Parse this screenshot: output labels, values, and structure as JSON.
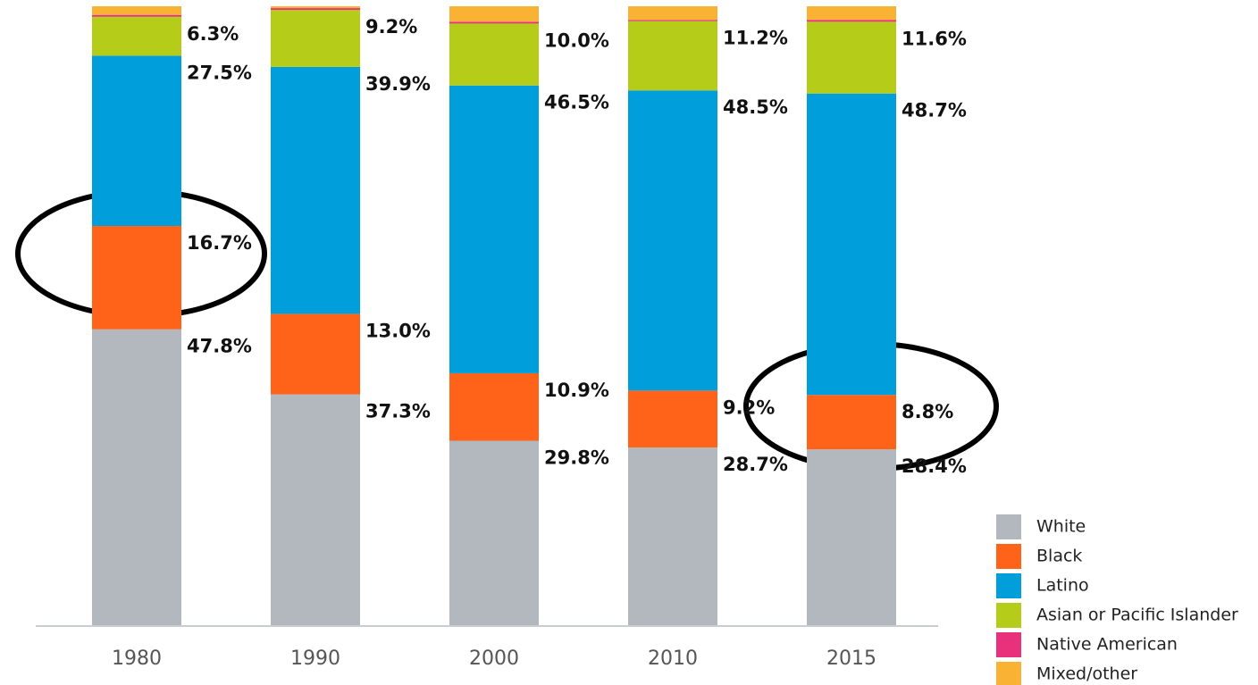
{
  "chart_data": {
    "type": "stacked_bar",
    "categories": [
      "1980",
      "1990",
      "2000",
      "2010",
      "2015"
    ],
    "ylim": [
      0,
      100
    ],
    "series": [
      {
        "name": "White",
        "color": "#b3b8bf",
        "values": [
          47.8,
          37.3,
          29.8,
          28.7,
          28.4
        ],
        "value_labels": [
          "47.8%",
          "37.3%",
          "29.8%",
          "28.7%",
          "28.4%"
        ]
      },
      {
        "name": "Black",
        "color": "#ff6319",
        "values": [
          16.7,
          13.0,
          10.9,
          9.2,
          8.8
        ],
        "value_labels": [
          "16.7%",
          "13.0%",
          "10.9%",
          "9.2%",
          "8.8%"
        ]
      },
      {
        "name": "Latino",
        "color": "#009edb",
        "values": [
          27.5,
          39.9,
          46.5,
          48.5,
          48.7
        ],
        "value_labels": [
          "27.5%",
          "39.9%",
          "46.5%",
          "48.5%",
          "48.7%"
        ]
      },
      {
        "name": "Asian or Pacific Islander",
        "color": "#b5cd19",
        "values": [
          6.3,
          9.2,
          10.0,
          11.2,
          11.6
        ],
        "value_labels": [
          "6.3%",
          "9.2%",
          "10.0%",
          "11.2%",
          "11.6%"
        ]
      },
      {
        "name": "Native American",
        "color": "#e8317a",
        "values": [
          0.3,
          0.3,
          0.3,
          0.2,
          0.3
        ]
      },
      {
        "name": "Mixed/other",
        "color": "#f9b234",
        "values": [
          1.4,
          0.3,
          2.5,
          2.2,
          2.2
        ]
      }
    ]
  }
}
